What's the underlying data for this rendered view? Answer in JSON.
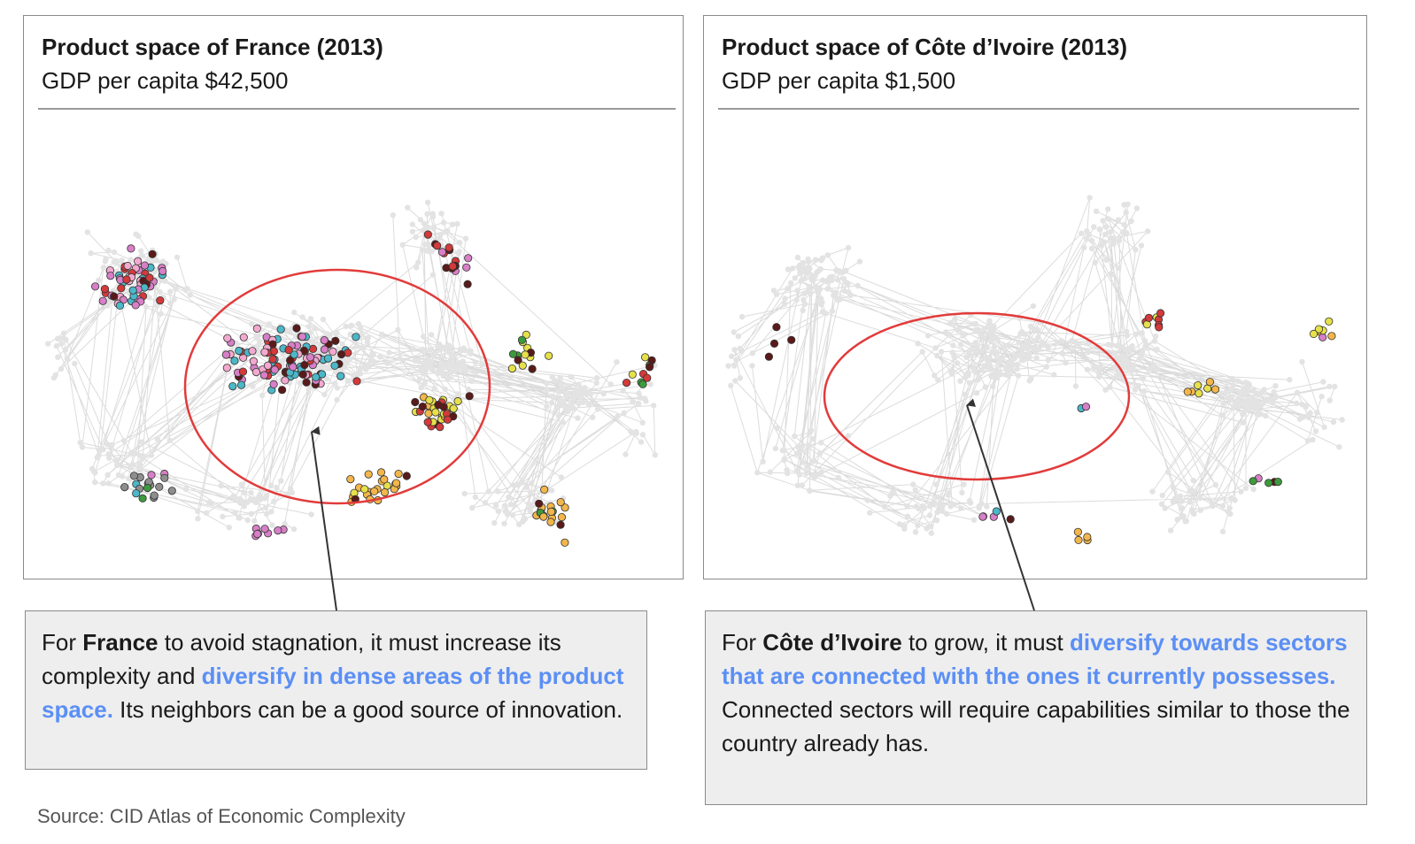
{
  "left_panel": {
    "title": "Product space of France (2013)",
    "subtitle": "GDP per capita $42,500"
  },
  "right_panel": {
    "title": "Product space of Côte d’Ivoire (2013)",
    "subtitle": "GDP per capita $1,500"
  },
  "left_callout": {
    "t1": "For ",
    "b1": "France",
    "t2": " to avoid stagnation, it must increase its complexity and ",
    "h1": "diversify in dense areas of the product space.",
    "t3": " Its neighbors can be a good source of innovation."
  },
  "right_callout": {
    "t1": "For ",
    "b1": "Côte d’Ivoire",
    "t2": " to grow, it must ",
    "h1": "diversify towards sectors that are connected with the ones it currently possesses.",
    "t3": " Connected sectors will require capabilities similar to those the country already has."
  },
  "source": "Source: CID Atlas of Economic Complexity",
  "colors": {
    "highlight_ellipse": "#e23b3b",
    "callout_highlight": "#5b8ff5",
    "network_gray": "#e3e3e3",
    "sector_palette": [
      "#d77fc7",
      "#4bb8c8",
      "#5a1a1a",
      "#d43a3a",
      "#e6e04a",
      "#f2b64a",
      "#3d9a3d",
      "#8e8e8e",
      "#f3a9cf",
      "#a9d86e"
    ]
  }
}
